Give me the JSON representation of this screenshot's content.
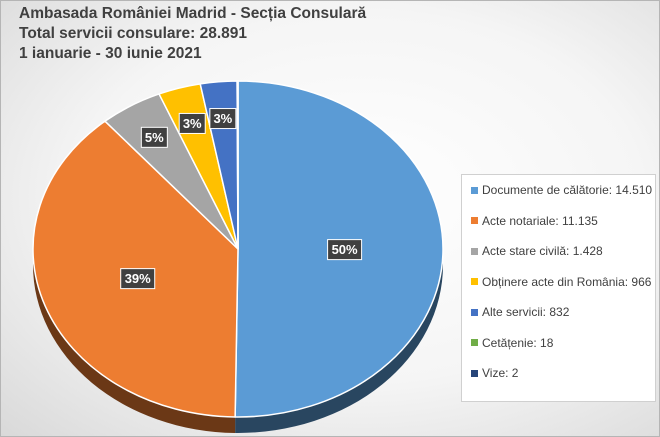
{
  "chart_data": {
    "type": "pie",
    "title": "Ambasada României Madrid - Secția Consulară",
    "subtitle": "Total servicii consulare: 28.891",
    "period": "1 ianuarie - 30 iunie 2021",
    "legend_position": "right",
    "slices": [
      {
        "legend": "Documente de călătorie: 14.510",
        "value": 14510,
        "label": "50%",
        "color": "#5b9bd5"
      },
      {
        "legend": "Acte notariale: 11.135",
        "value": 11135,
        "label": "39%",
        "color": "#ed7d31"
      },
      {
        "legend": "Acte stare civilă: 1.428",
        "value": 1428,
        "label": "5%",
        "color": "#a5a5a5"
      },
      {
        "legend": "Obținere acte din România: 966",
        "value": 966,
        "label": "3%",
        "color": "#ffc000"
      },
      {
        "legend": "Alte servicii: 832",
        "value": 832,
        "label": "3%",
        "color": "#4472c4"
      },
      {
        "legend": "Cetățenie: 18",
        "value": 18,
        "label": "",
        "color": "#70ad47"
      },
      {
        "legend": "Vize: 2",
        "value": 2,
        "label": "",
        "color": "#264478"
      }
    ]
  }
}
